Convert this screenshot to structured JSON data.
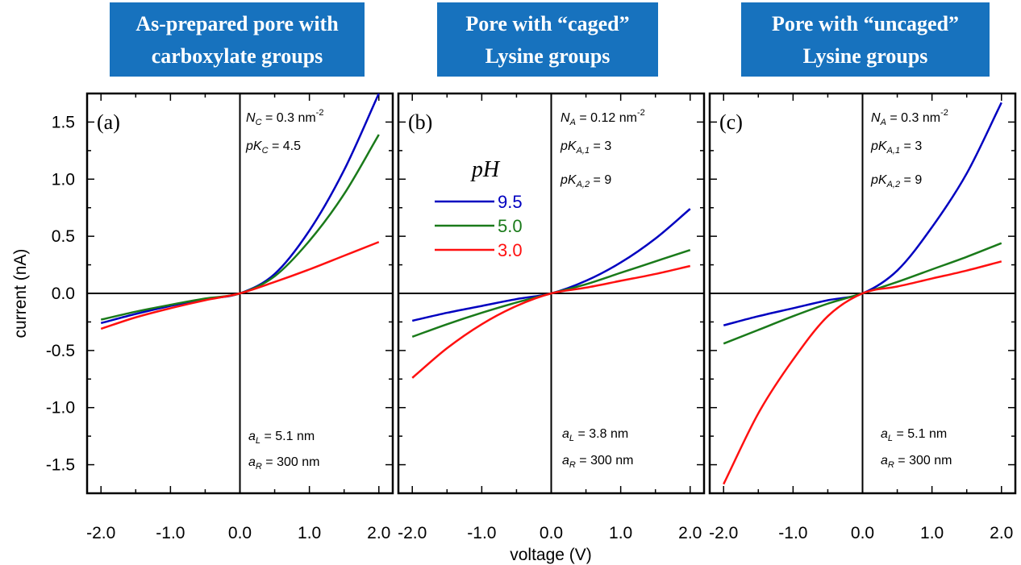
{
  "figure": {
    "ylabel": "current (nA)",
    "xlabel": "voltage (V)",
    "xticks": [
      "-2.0",
      "-1.0",
      "0.0",
      "1.0",
      "2.0"
    ],
    "yticks": [
      "1.5",
      "1.0",
      "0.5",
      "0.0",
      "-0.5",
      "-1.0",
      "-1.5"
    ],
    "legend_title": "pH",
    "legend": [
      {
        "label": "9.5",
        "color": "#0000c0"
      },
      {
        "label": "5.0",
        "color": "#1a7a1a"
      },
      {
        "label": "3.0",
        "color": "#ff1010"
      }
    ],
    "banner_color": "#1772be"
  },
  "chart_data": [
    {
      "type": "line",
      "panel_label": "(a)",
      "title_lines": [
        "As-prepared pore with",
        "carboxylate groups"
      ],
      "params": [
        {
          "sym": "N",
          "sub": "C",
          "rest": " = 0.3 nm",
          "sup": "-2"
        },
        {
          "sym": "pK",
          "sub": "C",
          "rest": " = 4.5",
          "sup": ""
        }
      ],
      "radii": [
        {
          "sym": "a",
          "sub": "L",
          "rest": " = 5.1 nm"
        },
        {
          "sym": "a",
          "sub": "R",
          "rest": " = 300 nm"
        }
      ],
      "xlim": [
        -2.2,
        2.2
      ],
      "ylim": [
        -1.75,
        1.75
      ],
      "x": [
        -2.0,
        -1.5,
        -1.0,
        -0.5,
        0.0,
        0.5,
        1.0,
        1.5,
        2.0
      ],
      "series": [
        {
          "name": "9.5",
          "values": [
            -0.26,
            -0.18,
            -0.11,
            -0.05,
            0.0,
            0.17,
            0.55,
            1.08,
            1.75
          ]
        },
        {
          "name": "5.0",
          "values": [
            -0.23,
            -0.16,
            -0.1,
            -0.045,
            0.0,
            0.15,
            0.46,
            0.87,
            1.39
          ]
        },
        {
          "name": "3.0",
          "values": [
            -0.31,
            -0.21,
            -0.13,
            -0.06,
            0.0,
            0.1,
            0.21,
            0.33,
            0.45
          ]
        }
      ]
    },
    {
      "type": "line",
      "panel_label": "(b)",
      "title_lines": [
        "Pore with “caged”",
        "Lysine groups"
      ],
      "params": [
        {
          "sym": "N",
          "sub": "A",
          "rest": " = 0.12 nm",
          "sup": "-2"
        },
        {
          "sym": "pK",
          "sub": "A,1",
          "rest": " = 3",
          "sup": ""
        },
        {
          "sym": "pK",
          "sub": "A,2",
          "rest": " = 9",
          "sup": ""
        }
      ],
      "radii": [
        {
          "sym": "a",
          "sub": "L",
          "rest": " = 3.8 nm"
        },
        {
          "sym": "a",
          "sub": "R",
          "rest": " = 300 nm"
        }
      ],
      "xlim": [
        -2.2,
        2.2
      ],
      "ylim": [
        -1.75,
        1.75
      ],
      "x": [
        -2.0,
        -1.5,
        -1.0,
        -0.5,
        0.0,
        0.5,
        1.0,
        1.5,
        2.0
      ],
      "series": [
        {
          "name": "9.5",
          "values": [
            -0.24,
            -0.17,
            -0.11,
            -0.05,
            0.0,
            0.11,
            0.27,
            0.48,
            0.74
          ]
        },
        {
          "name": "5.0",
          "values": [
            -0.38,
            -0.27,
            -0.17,
            -0.08,
            0.0,
            0.08,
            0.18,
            0.28,
            0.38
          ]
        },
        {
          "name": "3.0",
          "values": [
            -0.74,
            -0.48,
            -0.27,
            -0.11,
            0.0,
            0.05,
            0.11,
            0.17,
            0.24
          ]
        }
      ]
    },
    {
      "type": "line",
      "panel_label": "(c)",
      "title_lines": [
        "Pore with “uncaged”",
        "Lysine groups"
      ],
      "params": [
        {
          "sym": "N",
          "sub": "A",
          "rest": " = 0.3 nm",
          "sup": "-2"
        },
        {
          "sym": "pK",
          "sub": "A,1",
          "rest": " = 3",
          "sup": ""
        },
        {
          "sym": "pK",
          "sub": "A,2",
          "rest": " = 9",
          "sup": ""
        }
      ],
      "radii": [
        {
          "sym": "a",
          "sub": "L",
          "rest": " = 5.1 nm"
        },
        {
          "sym": "a",
          "sub": "R",
          "rest": " = 300 nm"
        }
      ],
      "xlim": [
        -2.2,
        2.2
      ],
      "ylim": [
        -1.75,
        1.75
      ],
      "x": [
        -2.0,
        -1.5,
        -1.0,
        -0.5,
        0.0,
        0.5,
        1.0,
        1.5,
        2.0
      ],
      "series": [
        {
          "name": "9.5",
          "values": [
            -0.28,
            -0.2,
            -0.13,
            -0.06,
            0.0,
            0.2,
            0.58,
            1.05,
            1.67
          ]
        },
        {
          "name": "5.0",
          "values": [
            -0.44,
            -0.32,
            -0.2,
            -0.09,
            0.0,
            0.1,
            0.21,
            0.32,
            0.44
          ]
        },
        {
          "name": "3.0",
          "values": [
            -1.67,
            -1.05,
            -0.58,
            -0.2,
            0.0,
            0.06,
            0.13,
            0.2,
            0.28
          ]
        }
      ]
    }
  ]
}
